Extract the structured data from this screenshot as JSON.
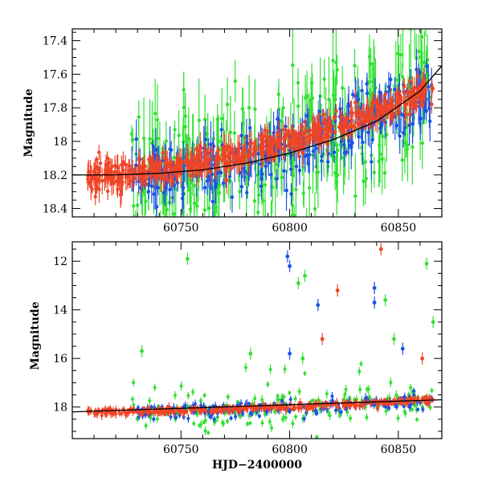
{
  "chart_data": [
    {
      "type": "scatter",
      "panel": "top",
      "title": "",
      "xlabel": "",
      "ylabel": "Magnitude",
      "xlim": [
        60700,
        60870
      ],
      "ylim": [
        18.45,
        17.33
      ],
      "y_inverted": true,
      "xticks": [
        60750,
        60800,
        60850
      ],
      "xtick_labels": [
        "60750",
        "60800",
        "60850"
      ],
      "yticks": [
        17.4,
        17.6,
        17.8,
        18.0,
        18.2,
        18.4
      ],
      "ytick_labels": [
        "17.4",
        "17.6",
        "17.8",
        "18",
        "18.2",
        "18.4"
      ],
      "grid": false,
      "legend": "none",
      "series": [
        {
          "color": "#33e033",
          "x_range": [
            60727,
            60866
          ],
          "trend_start": 18.2,
          "trend_end": 17.68,
          "scatter": 0.2,
          "error_bar": 0.15,
          "count": 320
        },
        {
          "color": "#1a52e6",
          "x_range": [
            60727,
            60866
          ],
          "trend_start": 18.2,
          "trend_end": 17.68,
          "scatter": 0.1,
          "error_bar": 0.08,
          "count": 340
        },
        {
          "color": "#f04426",
          "x_range": [
            60707,
            60866
          ],
          "trend_start": 18.2,
          "trend_end": 17.68,
          "scatter": 0.04,
          "error_bar": 0.05,
          "count": 600
        }
      ],
      "trend_line": {
        "color": "#000000",
        "x": [
          60700,
          60720,
          60740,
          60760,
          60780,
          60800,
          60820,
          60840,
          60860,
          60870
        ],
        "y": [
          18.2,
          18.2,
          18.19,
          18.17,
          18.13,
          18.07,
          17.99,
          17.88,
          17.7,
          17.55
        ]
      }
    },
    {
      "type": "scatter",
      "panel": "bottom",
      "title": "",
      "xlabel": "HJD−2400000",
      "ylabel": "Magnitude",
      "xlim": [
        60700,
        60870
      ],
      "ylim": [
        19.3,
        11.2
      ],
      "y_inverted": true,
      "xticks": [
        60750,
        60800,
        60850
      ],
      "xtick_labels": [
        "60750",
        "60800",
        "60850"
      ],
      "yticks": [
        12,
        14,
        16,
        18
      ],
      "ytick_labels": [
        "12",
        "14",
        "16",
        "18"
      ],
      "grid": false,
      "legend": "none",
      "outliers": [
        {
          "x": 60753,
          "y": 11.9,
          "color": "#33e033"
        },
        {
          "x": 60799,
          "y": 11.8,
          "color": "#1a52e6"
        },
        {
          "x": 60800,
          "y": 12.2,
          "color": "#1a52e6"
        },
        {
          "x": 60804,
          "y": 12.9,
          "color": "#33e033"
        },
        {
          "x": 60807,
          "y": 12.6,
          "color": "#33e033"
        },
        {
          "x": 60822,
          "y": 13.2,
          "color": "#f04426"
        },
        {
          "x": 60842,
          "y": 11.5,
          "color": "#f04426"
        },
        {
          "x": 60839,
          "y": 13.1,
          "color": "#1a52e6"
        },
        {
          "x": 60839,
          "y": 13.7,
          "color": "#1a52e6"
        },
        {
          "x": 60844,
          "y": 13.6,
          "color": "#33e033"
        },
        {
          "x": 60863,
          "y": 12.1,
          "color": "#33e033"
        },
        {
          "x": 60866,
          "y": 14.5,
          "color": "#33e033"
        },
        {
          "x": 60813,
          "y": 13.8,
          "color": "#1a52e6"
        },
        {
          "x": 60815,
          "y": 15.2,
          "color": "#f04426"
        },
        {
          "x": 60800,
          "y": 15.8,
          "color": "#1a52e6"
        },
        {
          "x": 60852,
          "y": 15.6,
          "color": "#1a52e6"
        },
        {
          "x": 60732,
          "y": 15.7,
          "color": "#33e033"
        },
        {
          "x": 60782,
          "y": 15.8,
          "color": "#33e033"
        },
        {
          "x": 60861,
          "y": 16.0,
          "color": "#f04426"
        },
        {
          "x": 60806,
          "y": 16.0,
          "color": "#33e033"
        },
        {
          "x": 60848,
          "y": 15.2,
          "color": "#33e033"
        }
      ]
    }
  ]
}
